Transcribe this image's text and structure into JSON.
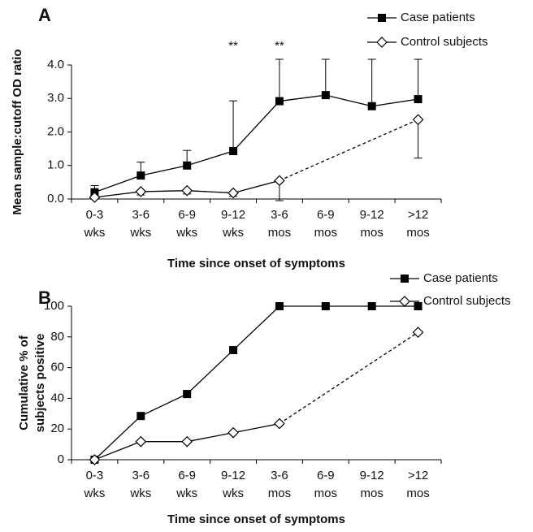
{
  "chart_data": [
    {
      "type": "line",
      "panel": "A",
      "ylabel": "Mean sample:cutoff OD ratio",
      "xlabel": "Time since onset of symptoms",
      "categories": [
        "0-3 wks",
        "3-6 wks",
        "6-9 wks",
        "9-12 wks",
        "3-6 mos",
        "6-9 mos",
        "9-12 mos",
        ">12 mos"
      ],
      "ylim": [
        0,
        4
      ],
      "yticks": [
        {
          "value": 0,
          "label": "0.0"
        },
        {
          "value": 1,
          "label": "1.0"
        },
        {
          "value": 2,
          "label": "2.0"
        },
        {
          "value": 3,
          "label": "3.0"
        },
        {
          "value": 4,
          "label": "4.0"
        }
      ],
      "annotations": [
        {
          "text": "**",
          "category": "9-12 wks"
        },
        {
          "text": "**",
          "category": "3-6 mos"
        }
      ],
      "series": [
        {
          "name": "Case patients",
          "color": "#000000",
          "marker": "square",
          "values": [
            0.2,
            0.7,
            1.0,
            1.43,
            2.92,
            3.1,
            2.77,
            2.98
          ],
          "errors": [
            0.2,
            0.4,
            0.45,
            1.5,
            1.25,
            1.07,
            1.4,
            1.19
          ],
          "error_direction": "up"
        },
        {
          "name": "Control subjects",
          "color": "#000000",
          "marker": "diamond",
          "values": [
            0.05,
            0.22,
            0.25,
            0.18,
            0.55,
            null,
            null,
            2.37
          ],
          "errors": [
            0.05,
            0.1,
            0.1,
            0.1,
            0.6,
            null,
            null,
            1.15
          ],
          "error_direction": "down"
        }
      ]
    },
    {
      "type": "line",
      "panel": "B",
      "ylabel": [
        "Cumulative % of",
        "subjects positive"
      ],
      "xlabel": "Time since onset of symptoms",
      "categories": [
        "0-3 wks",
        "3-6 wks",
        "6-9 wks",
        "9-12 wks",
        "3-6 mos",
        "6-9 mos",
        "9-12 mos",
        ">12 mos"
      ],
      "ylim": [
        0,
        100
      ],
      "yticks": [
        0,
        20,
        40,
        60,
        80,
        100
      ],
      "series": [
        {
          "name": "Case patients",
          "color": "#000000",
          "marker": "square",
          "values": [
            0,
            28.5,
            42.8,
            71.4,
            100,
            100,
            100,
            100
          ]
        },
        {
          "name": "Control subjects",
          "color": "#000000",
          "marker": "diamond",
          "values": [
            0,
            11.8,
            11.8,
            17.6,
            23.5,
            null,
            null,
            83
          ]
        }
      ]
    }
  ]
}
